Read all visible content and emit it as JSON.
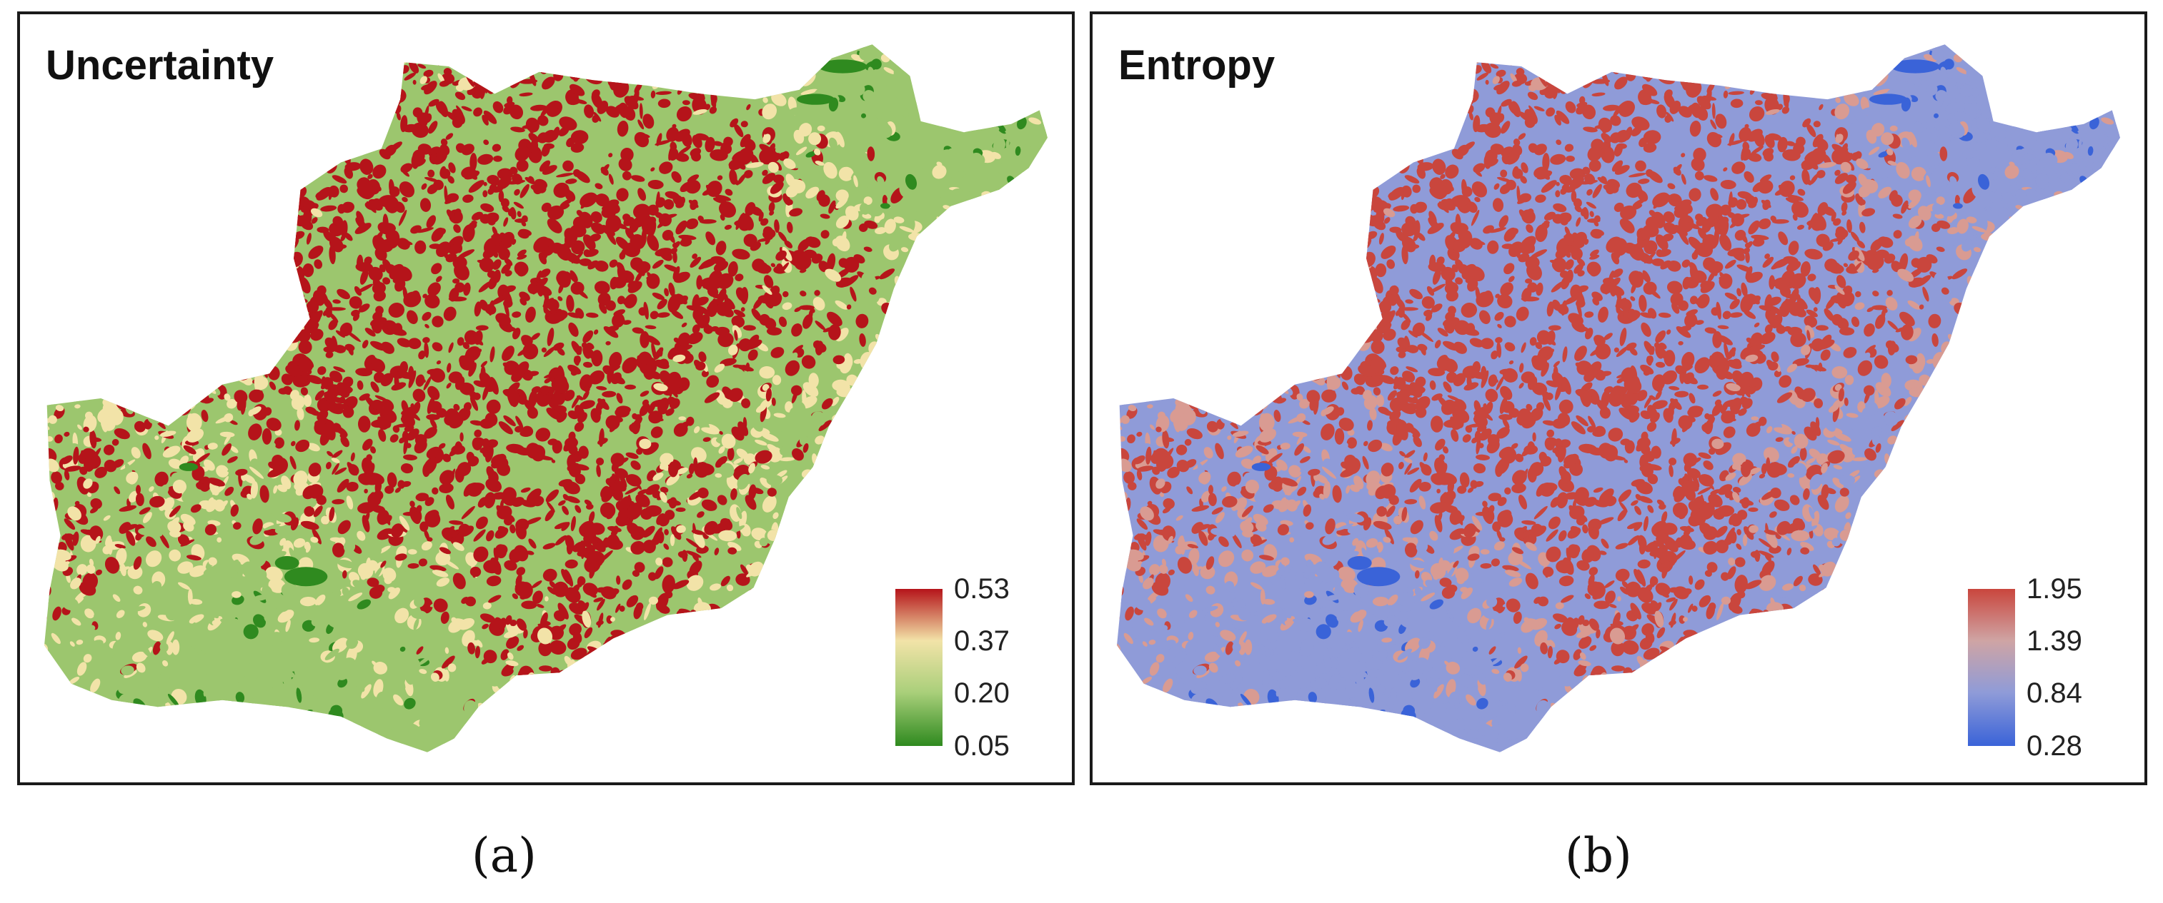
{
  "panels": [
    {
      "id": "a",
      "title": "Uncertainty",
      "caption": "(a)",
      "legend": {
        "ticks": [
          "0.53",
          "0.37",
          "0.20",
          "0.05"
        ],
        "colors": [
          "#b5141a",
          "#f2e3a8",
          "#a9cf7a",
          "#2f8a1f"
        ]
      },
      "palette": {
        "high": "#b5141a",
        "mid": "#f2e3a8",
        "low": "#9cc66e",
        "min": "#2f8a1f"
      }
    },
    {
      "id": "b",
      "title": "Entropy",
      "caption": "(b)",
      "legend": {
        "ticks": [
          "1.95",
          "1.39",
          "0.84",
          "0.28"
        ],
        "colors": [
          "#c9463d",
          "#cfa4a4",
          "#8f9bd8",
          "#3a63d8"
        ]
      },
      "palette": {
        "high": "#c9463d",
        "mid": "#d99b92",
        "low": "#8f9bd8",
        "min": "#3a63d8"
      }
    }
  ]
}
